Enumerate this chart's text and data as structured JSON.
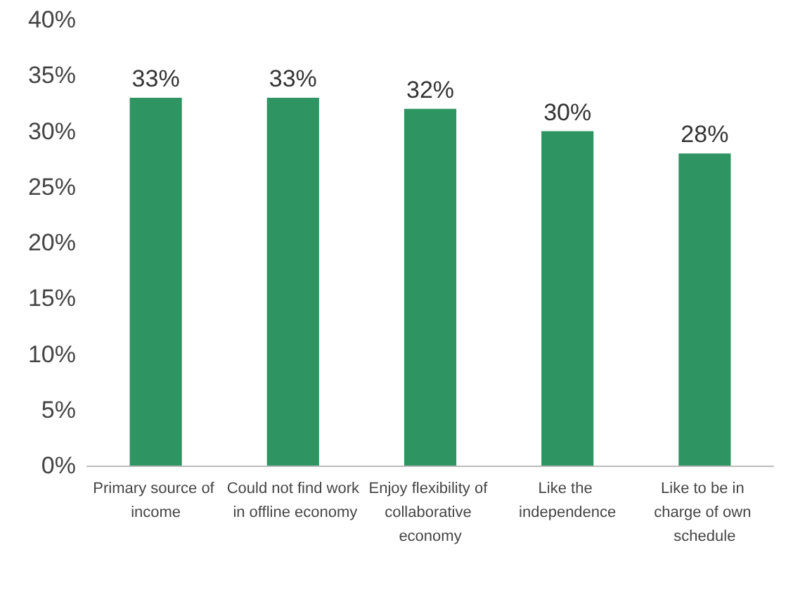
{
  "chart_data": {
    "type": "bar",
    "categories": [
      "Primary source of income",
      "Could not find work in offline economy",
      "Enjoy flexibility of collaborative economy",
      "Like the independence",
      "Like to be in charge of own schedule"
    ],
    "values": [
      33,
      33,
      32,
      30,
      28
    ],
    "value_labels": [
      "33%",
      "33%",
      "32%",
      "30%",
      "28%"
    ],
    "color": "#2e9462",
    "ylim": [
      0,
      40
    ],
    "yticks": [
      {
        "value": 0,
        "label": "0%"
      },
      {
        "value": 5,
        "label": "5%"
      },
      {
        "value": 10,
        "label": "10%"
      },
      {
        "value": 15,
        "label": "15%"
      },
      {
        "value": 20,
        "label": "20%"
      },
      {
        "value": 25,
        "label": "25%"
      },
      {
        "value": 30,
        "label": "30%"
      },
      {
        "value": 35,
        "label": "35%"
      },
      {
        "value": 40,
        "label": "40%"
      }
    ],
    "grid": false
  }
}
